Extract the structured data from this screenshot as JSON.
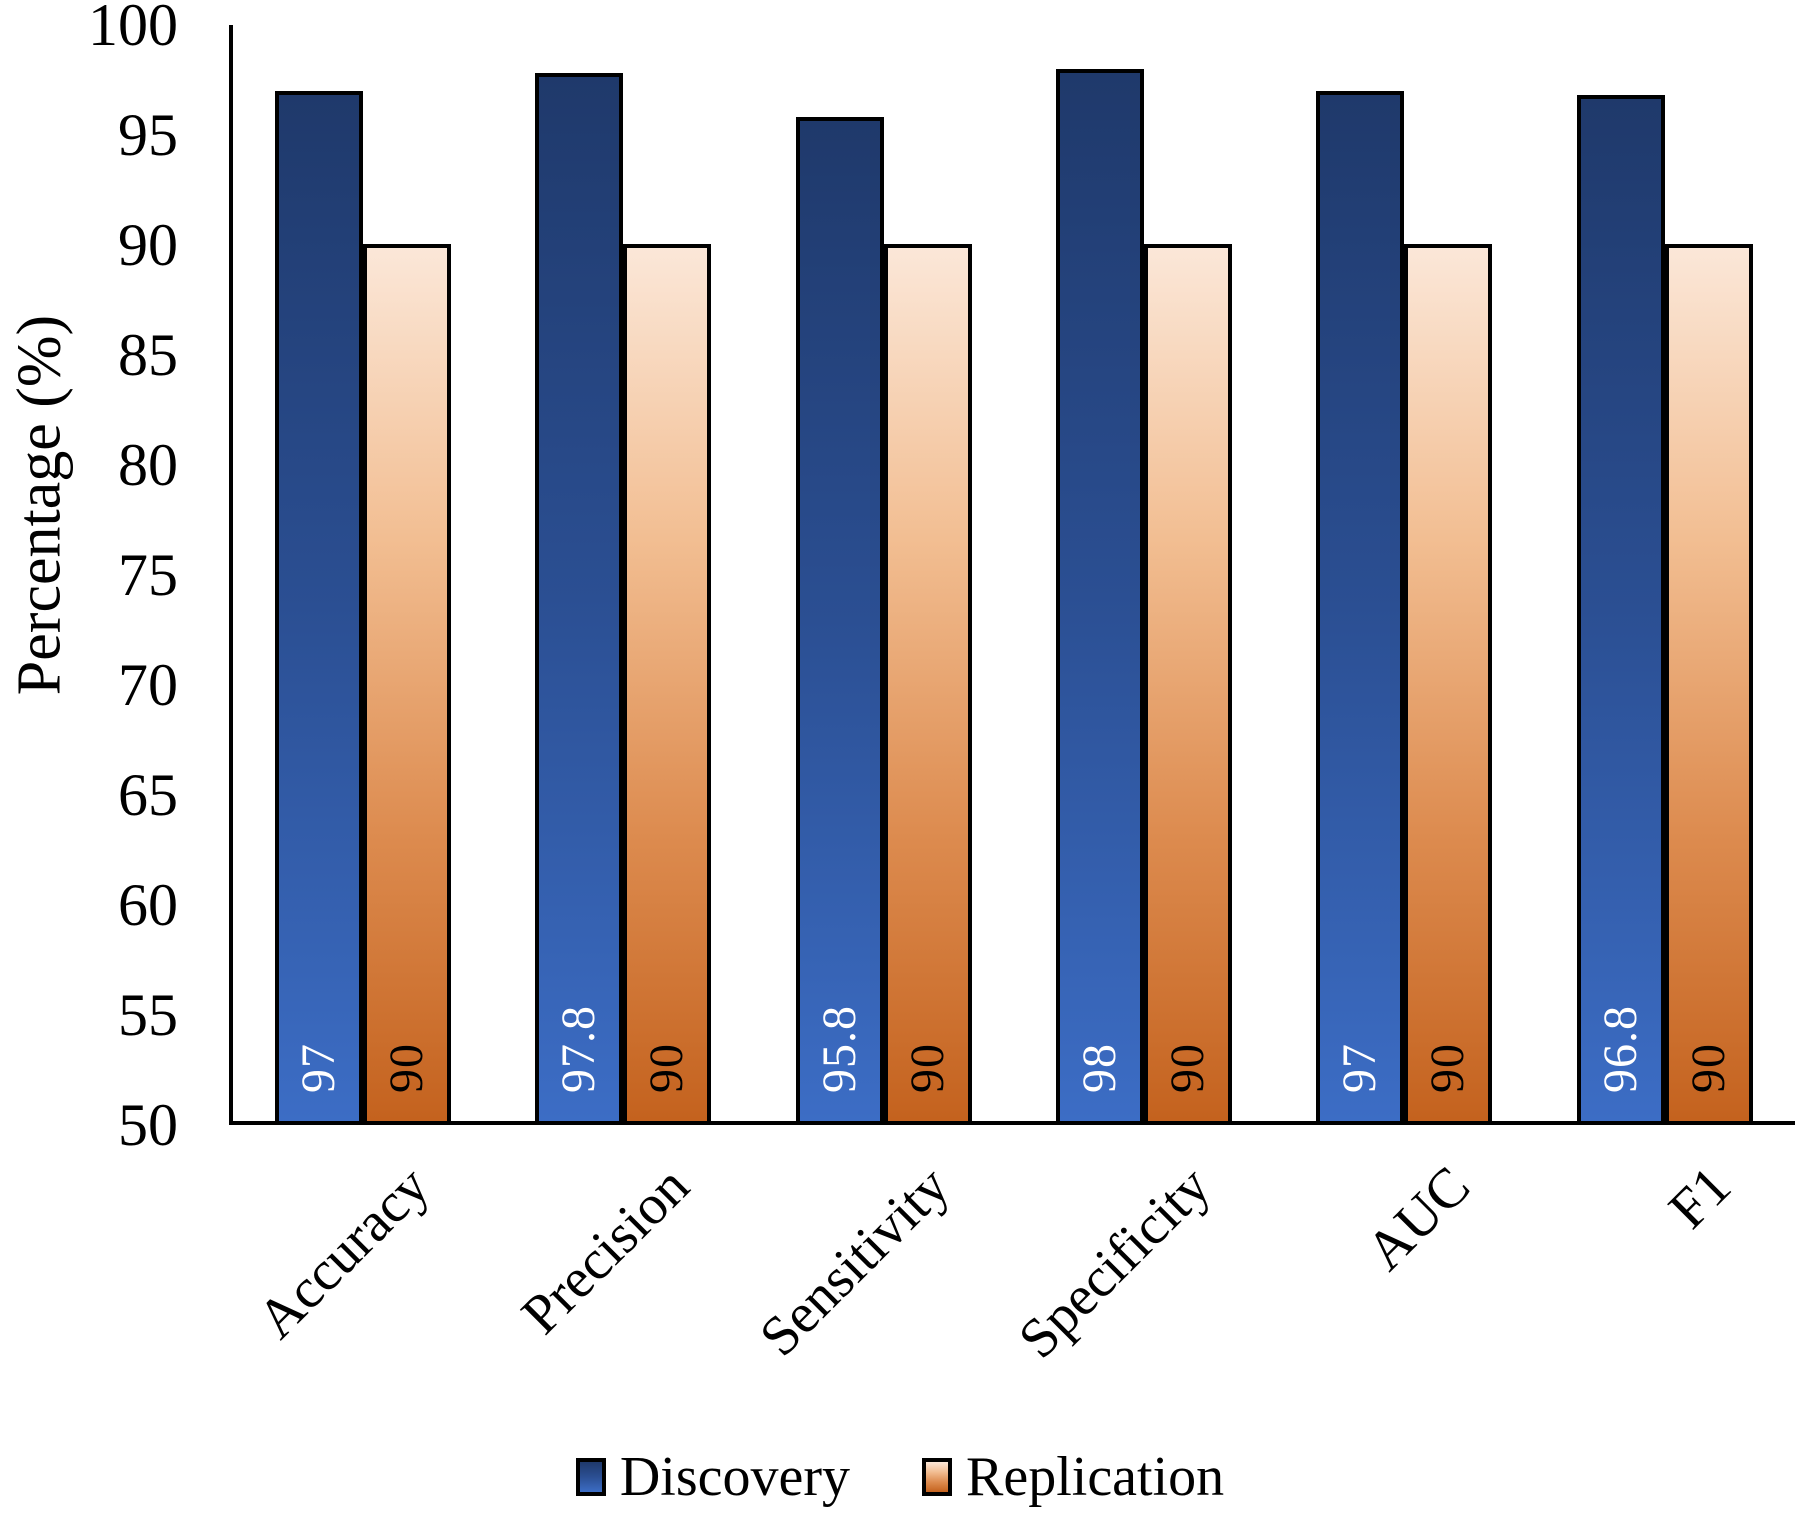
{
  "chart_data": {
    "type": "bar",
    "categories": [
      "Accuracy",
      "Precision",
      "Sensitivity",
      "Specificity",
      "AUC",
      "F1"
    ],
    "series": [
      {
        "name": "Discovery",
        "values": [
          97,
          97.8,
          95.8,
          98,
          97,
          96.8
        ],
        "gradient": [
          "#1F396B",
          "#2B4F93",
          "#3C6DC5"
        ],
        "label_color": "#FFFFFF"
      },
      {
        "name": "Replication",
        "values": [
          90,
          90,
          90,
          90,
          90,
          90
        ],
        "gradient": [
          "#FBE7D8",
          "#F2BE92",
          "#DD8C50",
          "#C4621E"
        ],
        "label_color": "#000000"
      }
    ],
    "title": "",
    "xlabel": "",
    "ylabel": "Percentage (%)",
    "ylim": [
      50,
      100
    ],
    "y_ticks": [
      50,
      55,
      60,
      65,
      70,
      75,
      80,
      85,
      90,
      95,
      100
    ],
    "grid": false,
    "legend_position": "bottom",
    "bar_outline_color": "#000000",
    "value_labels_rotated": true,
    "x_labels_angle_deg": 45
  }
}
